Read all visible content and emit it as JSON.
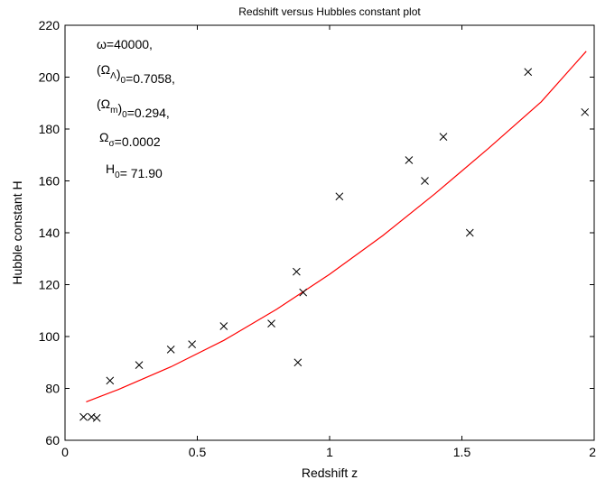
{
  "chart_data": {
    "type": "scatter",
    "title": "Redshift versus Hubbles constant plot",
    "xlabel": "Redshift z",
    "ylabel": "Hubble constant H",
    "xlim": [
      0,
      2
    ],
    "ylim": [
      60,
      220
    ],
    "xticks": [
      0,
      0.5,
      1,
      1.5,
      2
    ],
    "xtick_labels": [
      "0",
      "0.5",
      "1",
      "1.5",
      "2"
    ],
    "yticks": [
      60,
      80,
      100,
      120,
      140,
      160,
      180,
      200,
      220
    ],
    "ytick_labels": [
      "60",
      "80",
      "100",
      "120",
      "140",
      "160",
      "180",
      "200",
      "220"
    ],
    "grid": false,
    "series": [
      {
        "kind": "scatter",
        "marker": "x",
        "color": "#000000",
        "x": [
          0.07,
          0.1,
          0.12,
          0.17,
          0.28,
          0.4,
          0.48,
          0.6,
          0.78,
          0.875,
          0.88,
          0.9,
          1.037,
          1.3,
          1.36,
          1.43,
          1.53,
          1.75,
          1.965
        ],
        "y": [
          69,
          69,
          68.6,
          83,
          89,
          95,
          97,
          104,
          105,
          125,
          90,
          117,
          154,
          168,
          160,
          177,
          140,
          202,
          186.5
        ]
      },
      {
        "kind": "line",
        "color": "#ff0000",
        "x": [
          0.08,
          0.2,
          0.4,
          0.6,
          0.8,
          1.0,
          1.2,
          1.4,
          1.6,
          1.8,
          1.97
        ],
        "y": [
          74.8,
          79.5,
          88.3,
          98.5,
          110.5,
          124.0,
          138.8,
          155.2,
          172.5,
          190.5,
          210.0
        ]
      }
    ],
    "annotations": [
      {
        "parts": [
          {
            "t": "ω=40000,"
          }
        ]
      },
      {
        "parts": [
          {
            "t": "(Ω"
          },
          {
            "t": "Λ",
            "sub": true
          },
          {
            "t": ")"
          },
          {
            "t": "0",
            "sub": true
          },
          {
            "t": "=0.7058,"
          }
        ]
      },
      {
        "parts": [
          {
            "t": "(Ω"
          },
          {
            "t": "m",
            "sub": true
          },
          {
            "t": ")"
          },
          {
            "t": "0",
            "sub": true
          },
          {
            "t": "=0.294,"
          }
        ]
      },
      {
        "parts": [
          {
            "t": "Ω"
          },
          {
            "t": "σ",
            "sub": true
          },
          {
            "t": "=0.0002"
          }
        ]
      },
      {
        "parts": [
          {
            "t": "H"
          },
          {
            "t": "0",
            "sub": true
          },
          {
            "t": "= 71.90"
          }
        ]
      }
    ]
  }
}
